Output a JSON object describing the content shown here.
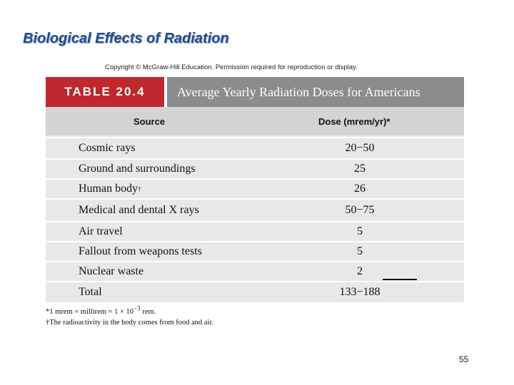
{
  "slide": {
    "title": "Biological Effects of Radiation",
    "copyright": "Copyright © McGraw-Hill Education. Permission required for reproduction or display.",
    "page_number": "55"
  },
  "table": {
    "label": "TABLE 20.4",
    "caption": "Average Yearly Radiation Doses for Americans",
    "headers": {
      "source": "Source",
      "dose": "Dose (mrem/yr)*"
    },
    "rows": [
      {
        "source": "Cosmic rays",
        "sup": "",
        "dose": "20−50"
      },
      {
        "source": "Ground and surroundings",
        "sup": "",
        "dose": "25"
      },
      {
        "source": "Human body",
        "sup": "†",
        "dose": "26"
      },
      {
        "source": "Medical and dental X rays",
        "sup": "",
        "dose": "50−75"
      },
      {
        "source": "Air travel",
        "sup": "",
        "dose": "5"
      },
      {
        "source": "Fallout from weapons tests",
        "sup": "",
        "dose": "5"
      },
      {
        "source": "Nuclear waste",
        "sup": "",
        "dose": "2"
      },
      {
        "source": "Total",
        "sup": "",
        "dose": "133−188"
      }
    ],
    "footnotes": {
      "note1_main": "*1 mrem = millirem = 1 × 10",
      "note1_exp": "−3",
      "note1_tail": " rem.",
      "note2": "†The radioactivity in the body comes from food and air."
    }
  }
}
